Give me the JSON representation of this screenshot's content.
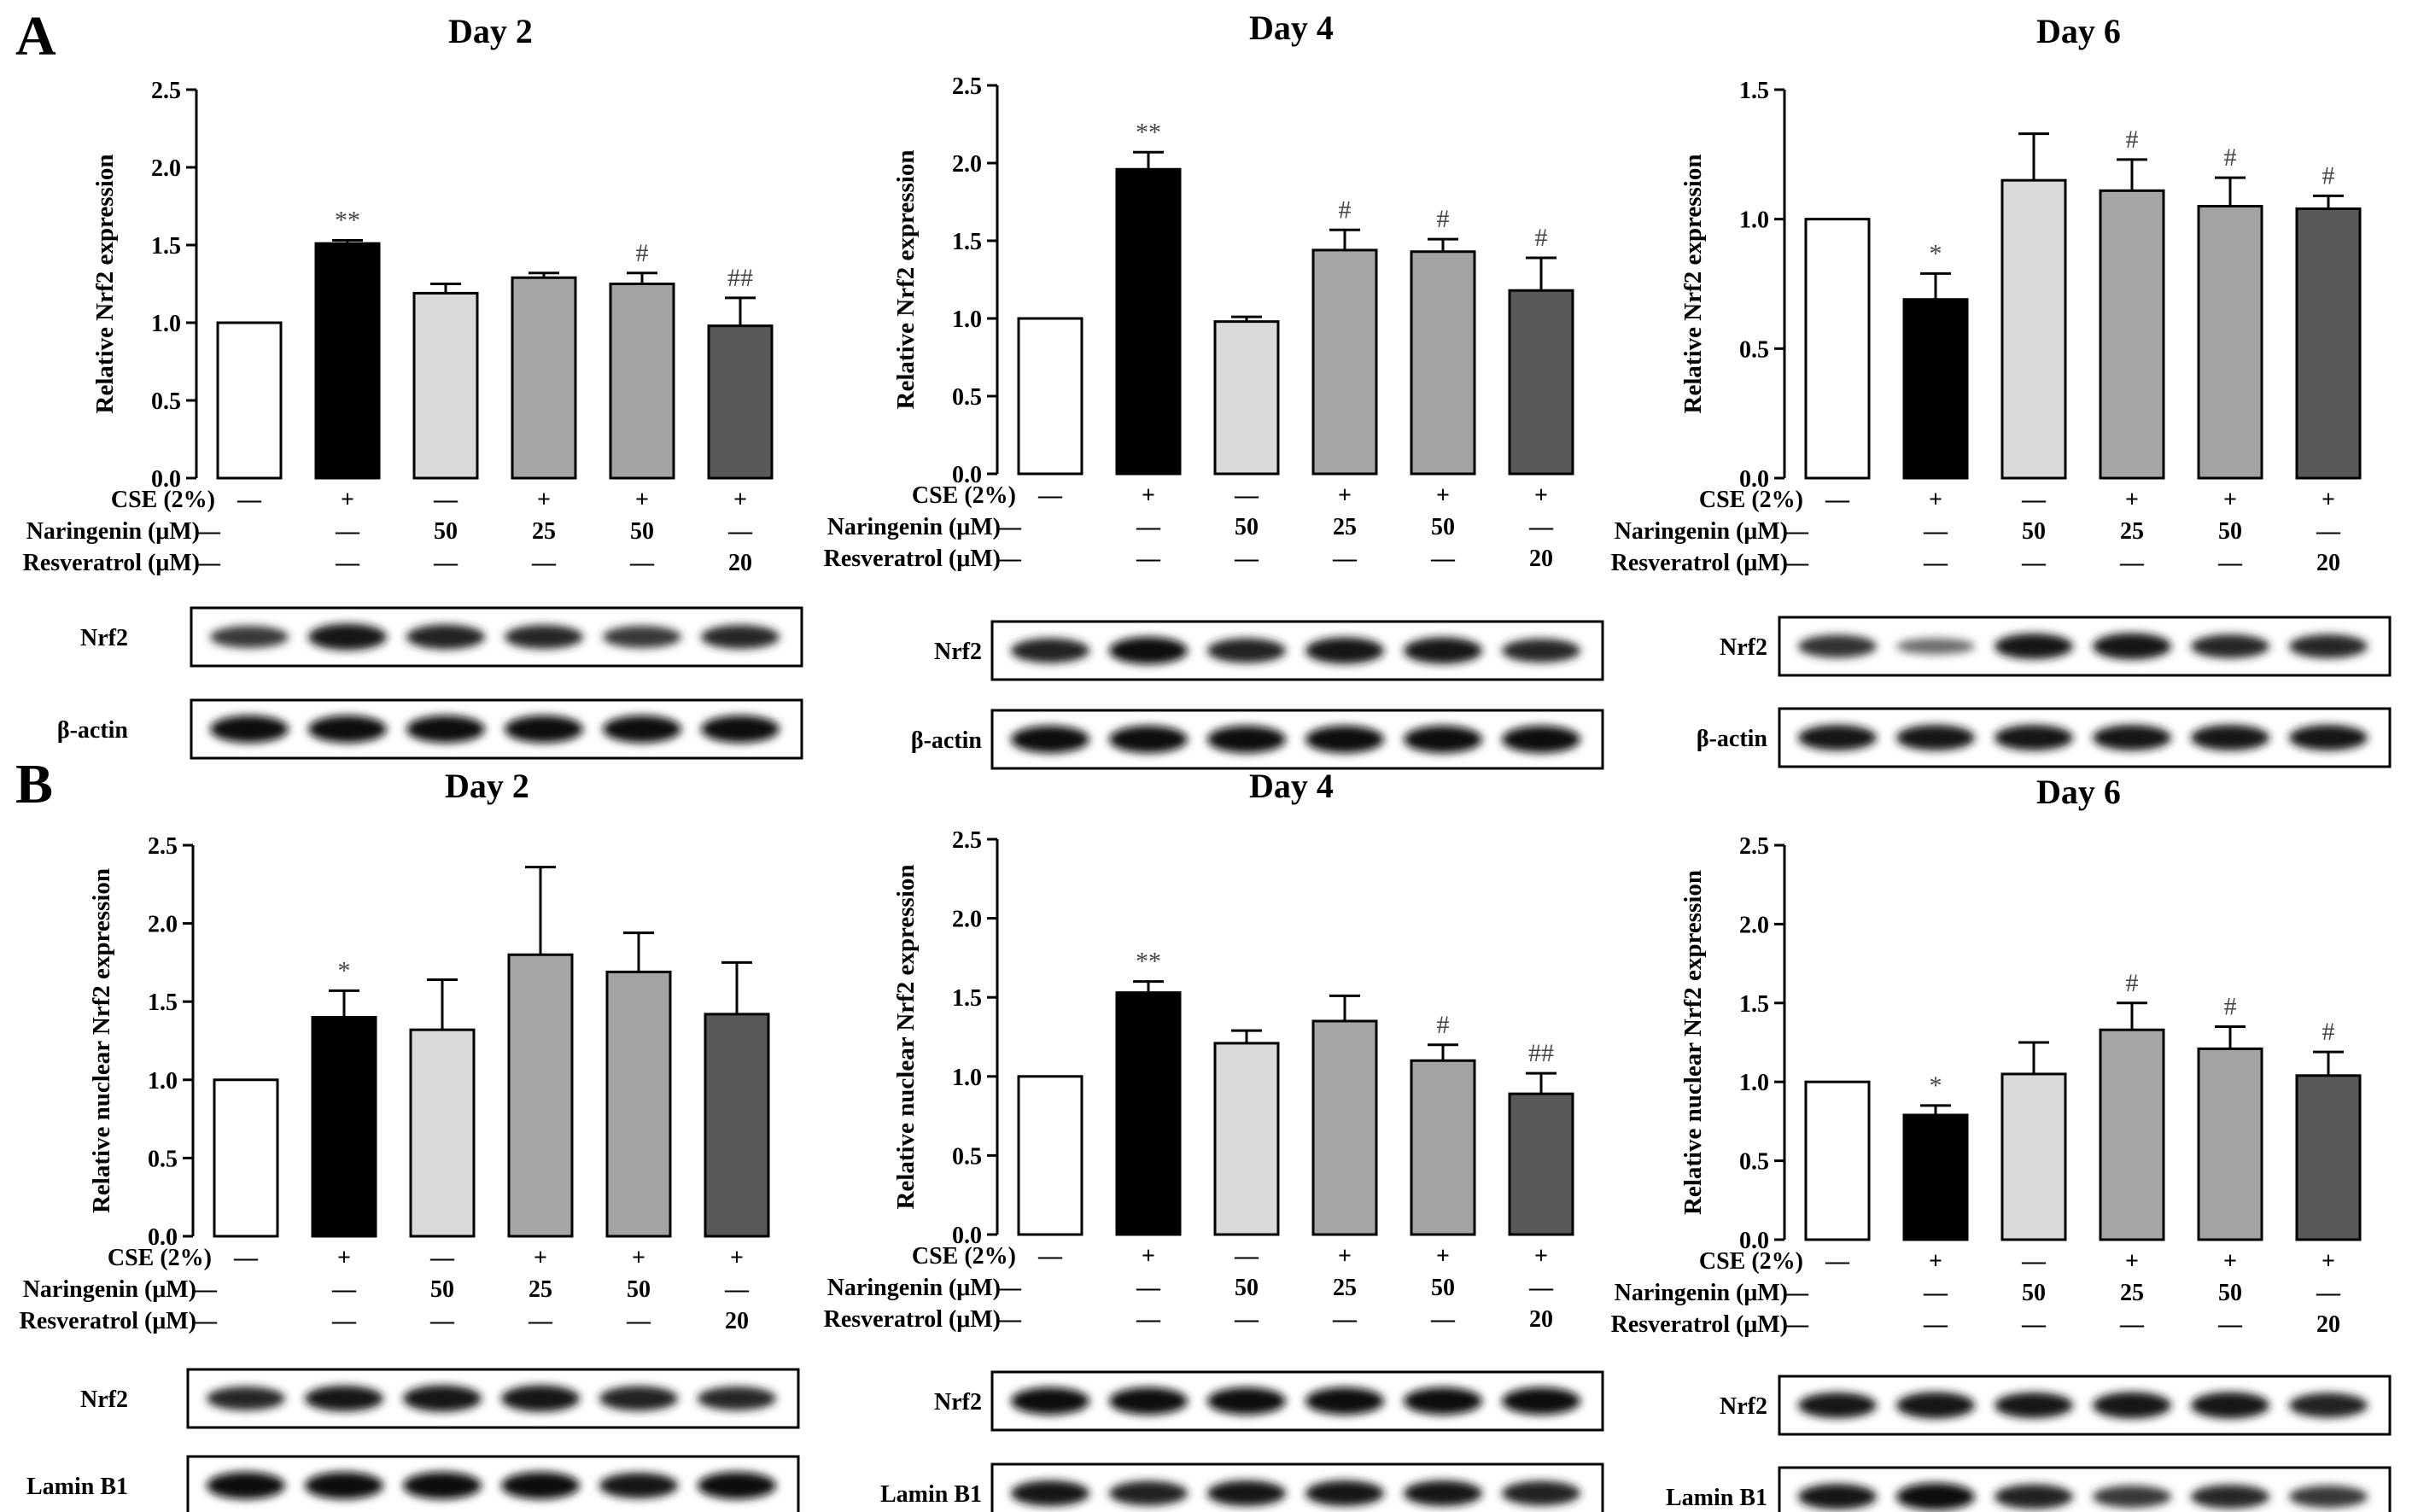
{
  "figure": {
    "panels": [
      {
        "letter": "A"
      },
      {
        "letter": "B"
      }
    ]
  },
  "conditions": {
    "labels": [
      "CSE (2%)",
      "Naringenin (μM)",
      "Resveratrol (μM)"
    ],
    "rows": [
      [
        "—",
        "+",
        "—",
        "+",
        "+",
        "+"
      ],
      [
        "—",
        "—",
        "50",
        "25",
        "50",
        "—"
      ],
      [
        "—",
        "—",
        "—",
        "—",
        "—",
        "20"
      ]
    ]
  },
  "bar_colors": [
    "#ffffff",
    "#000000",
    "#d9d9d9",
    "#a6a6a6",
    "#a3a3a6",
    "#595959"
  ],
  "chart_data": [
    {
      "type": "bar",
      "panel": "A",
      "title": "Day 2",
      "ylabel": "Relative Nrf2 expression",
      "ylim": [
        0,
        2.5
      ],
      "yticks": [
        "0.0",
        "0.5",
        "1.0",
        "1.5",
        "2.0",
        "2.5"
      ],
      "categories": [
        "Control",
        "CSE",
        "Naringenin 50",
        "CSE + Naringenin 25",
        "CSE + Naringenin 50",
        "CSE + Resveratrol 20"
      ],
      "values": [
        1.0,
        1.51,
        1.19,
        1.29,
        1.25,
        0.98
      ],
      "errors": [
        0,
        0.02,
        0.06,
        0.03,
        0.07,
        0.18
      ],
      "significance": [
        "",
        "**",
        "",
        "",
        "#",
        "##"
      ],
      "blots": [
        {
          "label": "Nrf2",
          "intensity": [
            0.7,
            0.95,
            0.85,
            0.8,
            0.7,
            0.8
          ]
        },
        {
          "label": "β-actin",
          "intensity": [
            1,
            1,
            1,
            1,
            1,
            1
          ]
        }
      ]
    },
    {
      "type": "bar",
      "panel": "A",
      "title": "Day 4",
      "ylabel": "Relative Nrf2 expression",
      "ylim": [
        0,
        2.5
      ],
      "yticks": [
        "0.0",
        "0.5",
        "1.0",
        "1.5",
        "2.0",
        "2.5"
      ],
      "categories": [
        "Control",
        "CSE",
        "Naringenin 50",
        "CSE + Naringenin 25",
        "CSE + Naringenin 50",
        "CSE + Resveratrol 20"
      ],
      "values": [
        1.0,
        1.96,
        0.98,
        1.44,
        1.43,
        1.18
      ],
      "errors": [
        0,
        0.11,
        0.03,
        0.13,
        0.08,
        0.21
      ],
      "significance": [
        "",
        "**",
        "",
        "#",
        "#",
        "#"
      ],
      "blots": [
        {
          "label": "Nrf2",
          "intensity": [
            0.85,
            1,
            0.85,
            0.95,
            0.95,
            0.8
          ]
        },
        {
          "label": "β-actin",
          "intensity": [
            1,
            1,
            1,
            1,
            1,
            1
          ]
        }
      ]
    },
    {
      "type": "bar",
      "panel": "A",
      "title": "Day 6",
      "ylabel": "Relative Nrf2 expression",
      "ylim": [
        0,
        1.5
      ],
      "yticks": [
        "0.0",
        "0.5",
        "1.0",
        "1.5"
      ],
      "categories": [
        "Control",
        "CSE",
        "Naringenin 50",
        "CSE + Naringenin 25",
        "CSE + Naringenin 50",
        "CSE + Resveratrol 20"
      ],
      "values": [
        1.0,
        0.69,
        1.15,
        1.11,
        1.05,
        1.04
      ],
      "errors": [
        0,
        0.1,
        0.18,
        0.12,
        0.11,
        0.05
      ],
      "significance": [
        "",
        "*",
        "",
        "#",
        "#",
        "#"
      ],
      "blots": [
        {
          "label": "Nrf2",
          "intensity": [
            0.75,
            0.35,
            0.9,
            0.95,
            0.8,
            0.8
          ]
        },
        {
          "label": "β-actin",
          "intensity": [
            0.9,
            0.9,
            0.9,
            0.9,
            0.9,
            0.9
          ]
        }
      ]
    },
    {
      "type": "bar",
      "panel": "B",
      "title": "Day 2",
      "ylabel": "Relative  nuclear Nrf2 expression",
      "ylim": [
        0,
        2.5
      ],
      "yticks": [
        "0.0",
        "0.5",
        "1.0",
        "1.5",
        "2.0",
        "2.5"
      ],
      "categories": [
        "Control",
        "CSE",
        "Naringenin 50",
        "CSE + Naringenin 25",
        "CSE + Naringenin 50",
        "CSE + Resveratrol 20"
      ],
      "values": [
        1.0,
        1.4,
        1.32,
        1.8,
        1.69,
        1.42
      ],
      "errors": [
        0,
        0.17,
        0.32,
        0.56,
        0.25,
        0.33
      ],
      "significance": [
        "",
        "*",
        "",
        "",
        "",
        ""
      ],
      "blots": [
        {
          "label": "Nrf2",
          "intensity": [
            0.8,
            0.9,
            0.95,
            0.95,
            0.85,
            0.8
          ]
        },
        {
          "label": "Lamin B1",
          "intensity": [
            1,
            1,
            1,
            1,
            0.9,
            1
          ]
        }
      ]
    },
    {
      "type": "bar",
      "panel": "B",
      "title": "Day 4",
      "ylabel": "Relative  nuclear Nrf2 expression",
      "ylim": [
        0,
        2.5
      ],
      "yticks": [
        "0.0",
        "0.5",
        "1.0",
        "1.5",
        "2.0",
        "2.5"
      ],
      "categories": [
        "Control",
        "CSE",
        "Naringenin 50",
        "CSE + Naringenin 25",
        "CSE + Naringenin 50",
        "CSE + Resveratrol 20"
      ],
      "values": [
        1.0,
        1.53,
        1.21,
        1.35,
        1.1,
        0.89
      ],
      "errors": [
        0,
        0.07,
        0.08,
        0.16,
        0.1,
        0.13
      ],
      "significance": [
        "",
        "**",
        "",
        "",
        "#",
        "##"
      ],
      "blots": [
        {
          "label": "Nrf2",
          "intensity": [
            1,
            1,
            1,
            1,
            1,
            1
          ]
        },
        {
          "label": "Lamin B1",
          "intensity": [
            0.9,
            0.85,
            0.9,
            0.9,
            0.9,
            0.85
          ]
        }
      ]
    },
    {
      "type": "bar",
      "panel": "B",
      "title": "Day 6",
      "ylabel": "Relative  nuclear Nrf2 expression",
      "ylim": [
        0,
        2.5
      ],
      "yticks": [
        "0.0",
        "0.5",
        "1.0",
        "1.5",
        "2.0",
        "2.5"
      ],
      "categories": [
        "Control",
        "CSE",
        "Naringenin 50",
        "CSE + Naringenin 25",
        "CSE + Naringenin 50",
        "CSE + Resveratrol 20"
      ],
      "values": [
        1.0,
        0.79,
        1.05,
        1.33,
        1.21,
        1.04
      ],
      "errors": [
        0,
        0.06,
        0.2,
        0.17,
        0.14,
        0.15
      ],
      "significance": [
        "",
        "*",
        "",
        "#",
        "#",
        "#"
      ],
      "blots": [
        {
          "label": "Nrf2",
          "intensity": [
            0.9,
            0.95,
            0.9,
            0.95,
            0.95,
            0.85
          ]
        },
        {
          "label": "Lamin B1",
          "intensity": [
            0.9,
            1,
            0.85,
            0.7,
            0.8,
            0.7
          ]
        }
      ]
    }
  ]
}
